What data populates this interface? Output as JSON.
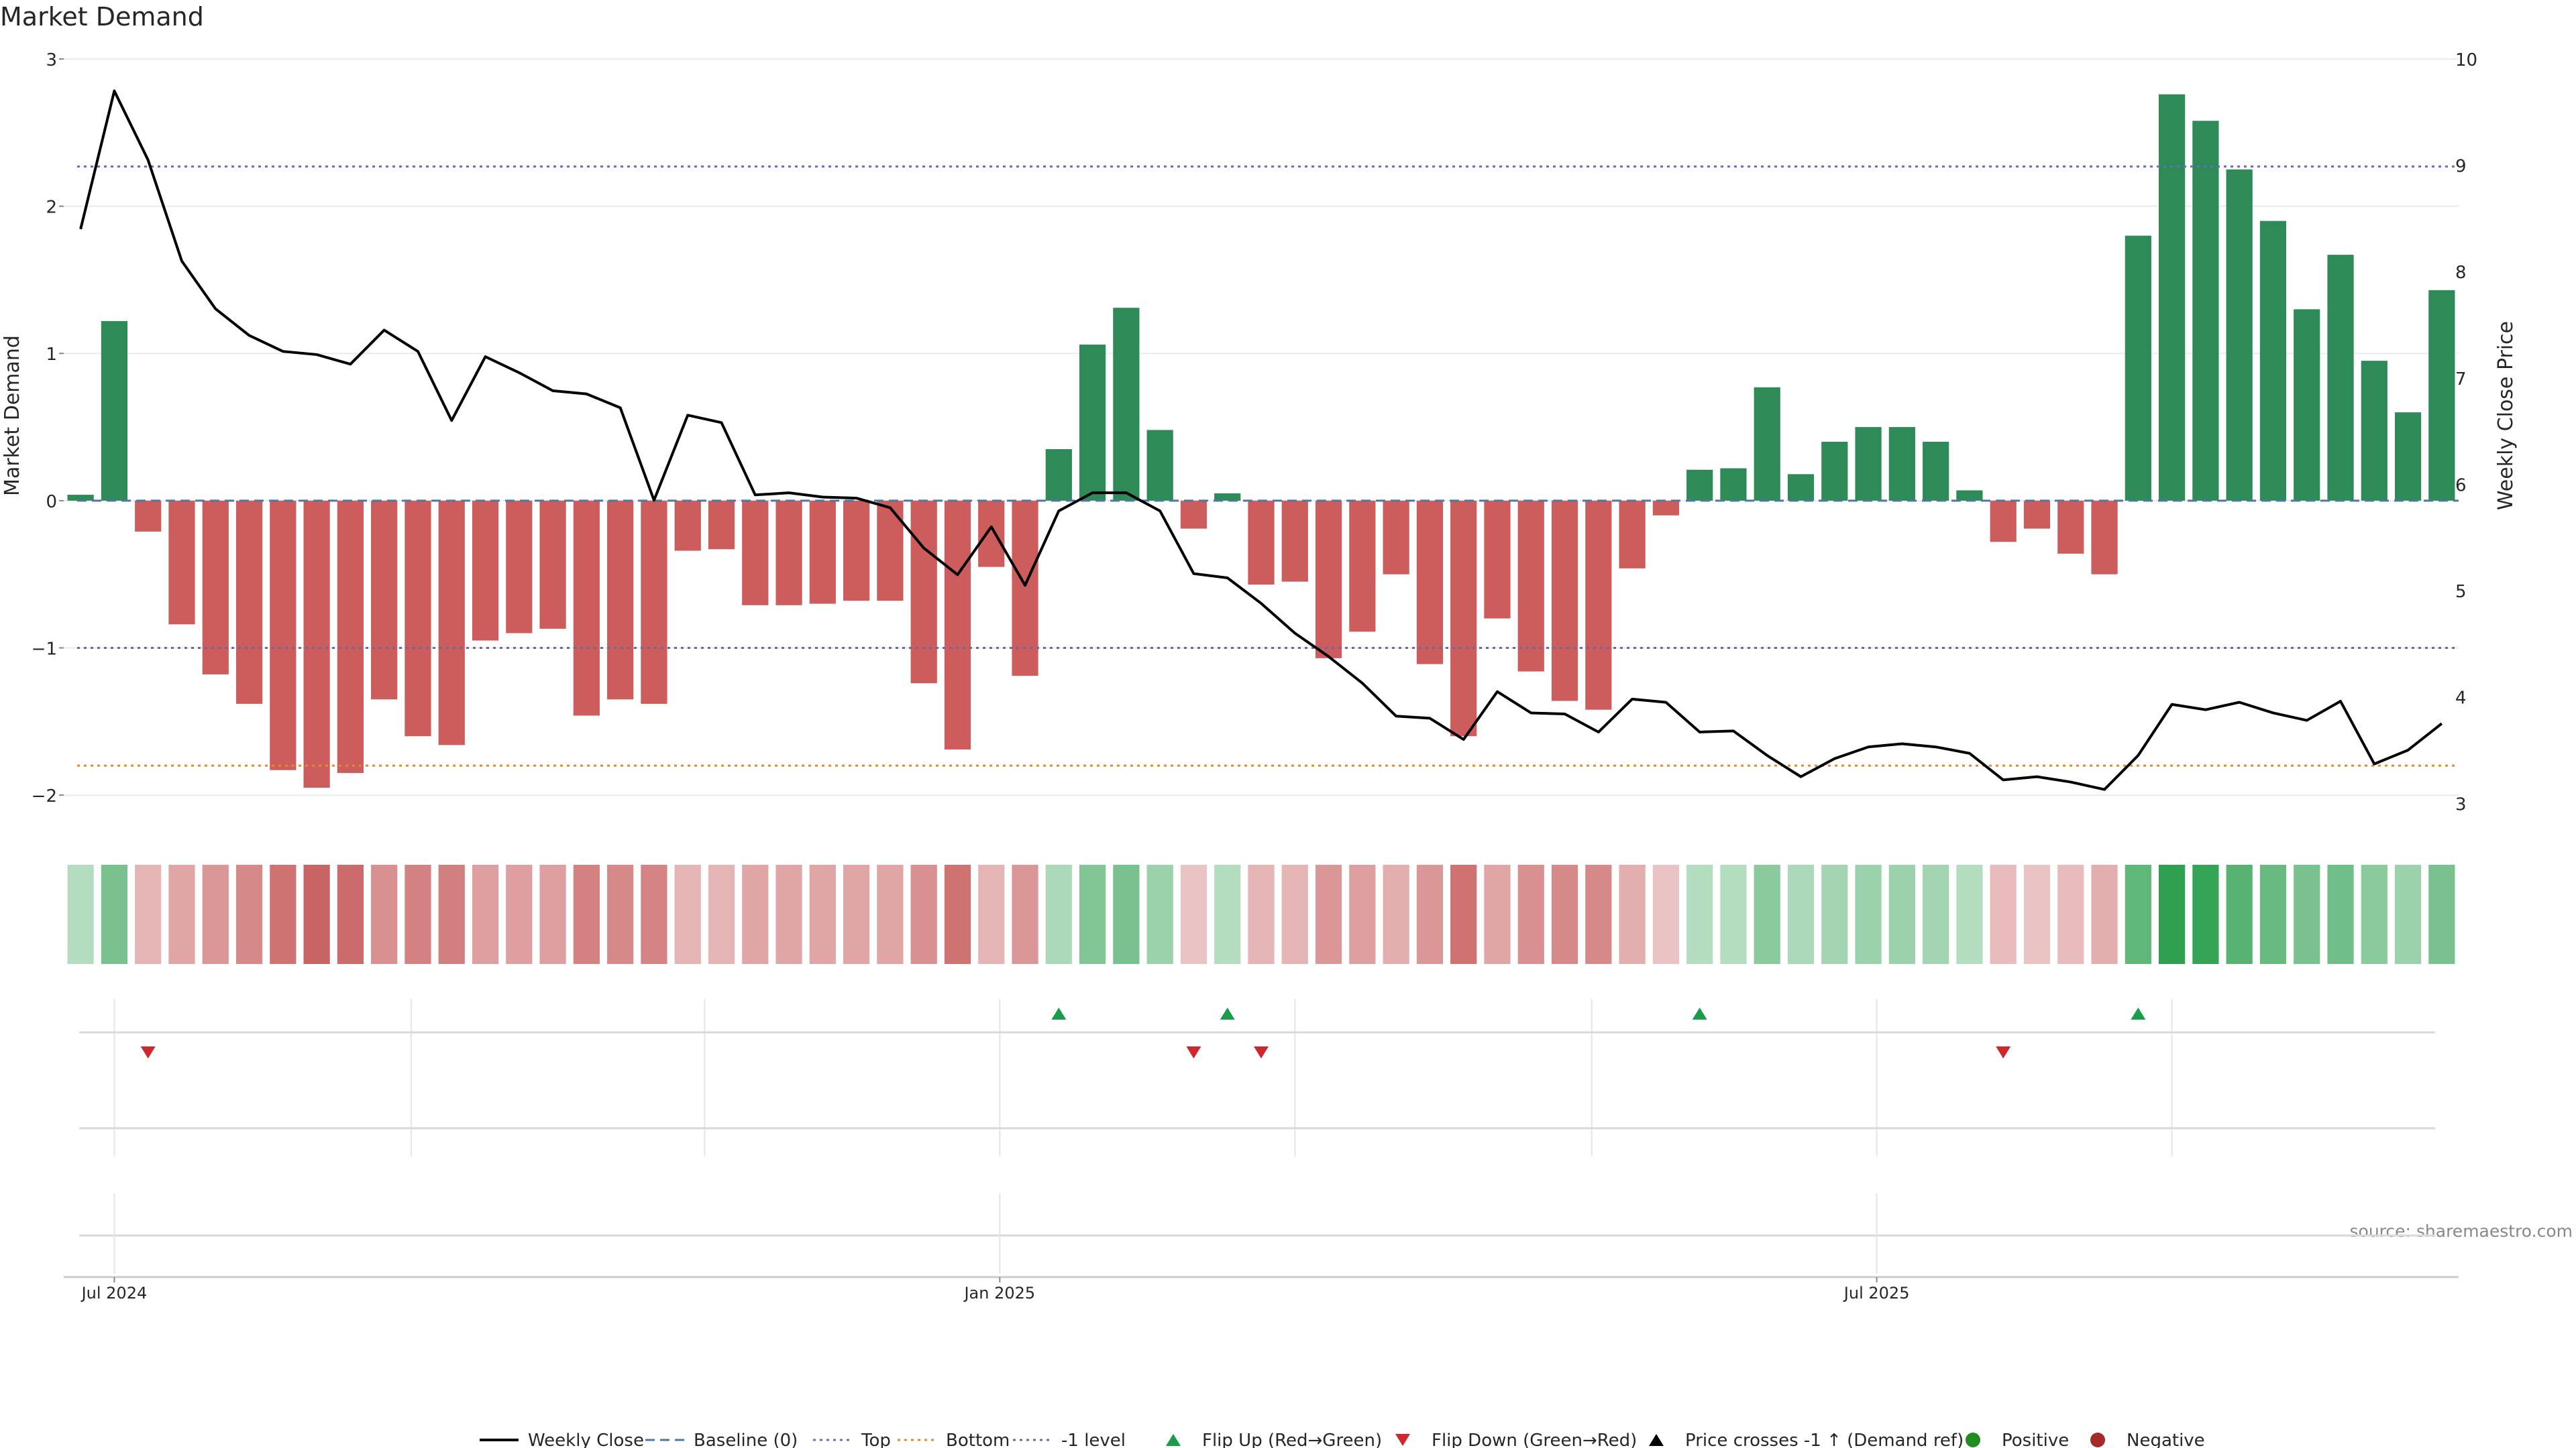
{
  "chart_data": {
    "type": "bar",
    "title": "Market Demand",
    "ylabel_left": "Market Demand",
    "ylabel_right": "Weekly Close Price",
    "ylim_left": [
      -2.2,
      3.0
    ],
    "ylim_right": [
      2.8,
      10.0
    ],
    "yticks_left": [
      3,
      2,
      1,
      0,
      -1,
      -2
    ],
    "ytick_labels_left": [
      "3",
      "2",
      "1",
      "0",
      "−1",
      "−2"
    ],
    "yticks_right": [
      10,
      9,
      8,
      7,
      6,
      5,
      4,
      3
    ],
    "ytick_labels_right": [
      "10",
      "9",
      "8",
      "7",
      "6",
      "5",
      "4",
      "3"
    ],
    "xtick_labels": [
      "Jul 2024",
      "Jan 2025",
      "Jul 2025"
    ],
    "xtick_index": [
      1,
      27.25,
      53.25
    ],
    "source": "source: sharemaestro.com",
    "colors": {
      "positive_bar": "#2e8b57",
      "negative_bar": "#cd5c5c",
      "price_line": "#000000",
      "baseline": "#4c78a8",
      "top_line": "#6a6acd",
      "bottom_line": "#e08a2c",
      "minus1_line": "#6a6a9a",
      "flip_up": "#1a9c4a",
      "flip_down": "#d0262e",
      "positive_dot": "#228b22",
      "negative_dot": "#a52a2a"
    },
    "reference_levels": {
      "baseline": 0,
      "top": 2.27,
      "bottom": -1.8,
      "minus1": -1
    },
    "weeks": 71,
    "series": [
      {
        "name": "Market Demand",
        "values": [
          0.04,
          1.22,
          -0.21,
          -0.84,
          -1.18,
          -1.38,
          -1.83,
          -1.95,
          -1.85,
          -1.35,
          -1.6,
          -1.66,
          -0.95,
          -0.9,
          -0.87,
          -1.46,
          -1.35,
          -1.38,
          -0.34,
          -0.33,
          -0.71,
          -0.71,
          -0.7,
          -0.68,
          -0.68,
          -1.24,
          -1.69,
          -0.45,
          -1.19,
          0.35,
          1.06,
          1.31,
          0.48,
          -0.19,
          0.05,
          -0.57,
          -0.55,
          -1.07,
          -0.89,
          -0.5,
          -1.11,
          -1.6,
          -0.8,
          -1.16,
          -1.36,
          -1.42,
          -0.46,
          -0.1,
          0.21,
          0.22,
          0.77,
          0.18,
          0.4,
          0.5,
          0.5,
          0.4,
          0.07,
          -0.28,
          -0.19,
          -0.36,
          -0.5,
          1.8,
          2.76,
          2.58,
          2.25,
          1.9,
          1.3,
          1.67,
          0.95,
          0.6,
          1.43
        ]
      },
      {
        "name": "Weekly Close",
        "values": [
          8.4,
          9.7,
          9.05,
          8.1,
          7.65,
          7.4,
          7.25,
          7.22,
          7.13,
          7.45,
          7.25,
          6.6,
          7.2,
          7.05,
          6.88,
          6.85,
          6.72,
          5.85,
          6.65,
          6.58,
          5.9,
          5.92,
          5.88,
          5.87,
          5.78,
          5.4,
          5.15,
          5.6,
          5.05,
          5.75,
          5.92,
          5.92,
          5.75,
          5.16,
          5.12,
          4.88,
          4.6,
          4.38,
          4.13,
          3.82,
          3.8,
          3.6,
          4.05,
          3.85,
          3.84,
          3.67,
          3.98,
          3.95,
          3.67,
          3.68,
          3.45,
          3.25,
          3.42,
          3.53,
          3.56,
          3.53,
          3.47,
          3.22,
          3.25,
          3.2,
          3.13,
          3.45,
          3.93,
          3.88,
          3.95,
          3.85,
          3.78,
          3.96,
          3.37,
          3.5,
          3.75
        ]
      }
    ],
    "strip_intensity": [
      0.2,
      0.55,
      0.25,
      0.35,
      0.45,
      0.55,
      0.7,
      0.8,
      0.75,
      0.5,
      0.6,
      0.62,
      0.4,
      0.4,
      0.4,
      0.6,
      0.55,
      0.58,
      0.25,
      0.25,
      0.35,
      0.35,
      0.35,
      0.35,
      0.35,
      0.5,
      0.7,
      0.25,
      0.45,
      0.25,
      0.5,
      0.55,
      0.35,
      0.15,
      0.2,
      0.25,
      0.25,
      0.45,
      0.4,
      0.3,
      0.45,
      0.7,
      0.35,
      0.5,
      0.55,
      0.55,
      0.3,
      0.15,
      0.2,
      0.2,
      0.45,
      0.25,
      0.3,
      0.35,
      0.35,
      0.3,
      0.2,
      0.2,
      0.15,
      0.2,
      0.3,
      0.7,
      1.0,
      0.95,
      0.75,
      0.65,
      0.55,
      0.6,
      0.45,
      0.35,
      0.55
    ],
    "flip_up_weeks": [
      29,
      34,
      48,
      61
    ],
    "flip_down_weeks": [
      2,
      33,
      35,
      57
    ],
    "legend": [
      {
        "label": "Weekly Close",
        "style": "solid-line",
        "color": "#000000"
      },
      {
        "label": "Baseline (0)",
        "style": "dash-line",
        "color": "#4c78a8"
      },
      {
        "label": "Top",
        "style": "dot-line",
        "color": "#6a6acd"
      },
      {
        "label": "Bottom",
        "style": "dot-line",
        "color": "#e08a2c"
      },
      {
        "label": "-1 level",
        "style": "dot-line",
        "color": "#6a6a9a"
      },
      {
        "label": "Flip Up (Red→Green)",
        "style": "triangle-up",
        "color": "#1a9c4a"
      },
      {
        "label": "Flip Down (Green→Red)",
        "style": "triangle-down",
        "color": "#d0262e"
      },
      {
        "label": "Price crosses -1 ↑ (Demand ref)",
        "style": "triangle-up",
        "color": "#000000"
      },
      {
        "label": "Positive",
        "style": "circle",
        "color": "#228b22"
      },
      {
        "label": "Negative",
        "style": "circle",
        "color": "#a52a2a"
      }
    ]
  }
}
